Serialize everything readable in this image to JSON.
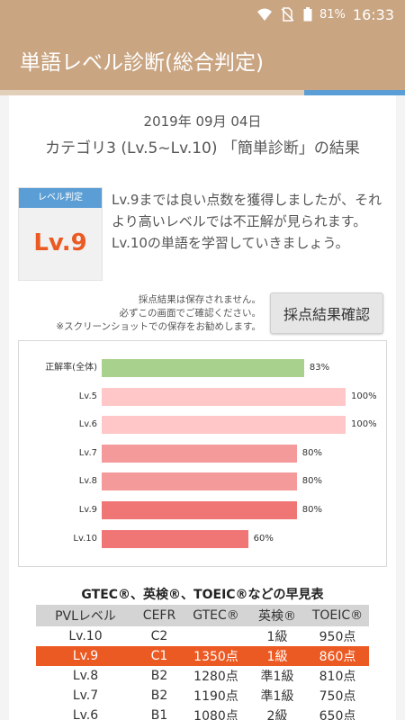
{
  "status_bar": {
    "battery": "81%",
    "time": "16:33",
    "icons": [
      "wifi-icon",
      "no-sim-icon",
      "battery-icon"
    ]
  },
  "app_bar": {
    "title": "単語レベル診断(総合判定)"
  },
  "result": {
    "date": "2019年 09月 04日",
    "subtitle": "カテゴリ3 (Lv.5~Lv.10) 「簡単診断」の結果"
  },
  "level": {
    "header": "レベル判定",
    "value": "Lv.9",
    "message": "Lv.9までは良い点数を獲得しましたが、それより高いレベルでは不正解が見られます。Lv.10の単語を学習していきましょう。"
  },
  "notice": {
    "lines": [
      "採点結果は保存されません。",
      "必ずこの画面でご確認ください。",
      "※スクリーンショットでの保存をお勧めします。"
    ]
  },
  "check_button": {
    "label": "採点結果確認"
  },
  "chart_data": {
    "type": "bar",
    "orientation": "horizontal",
    "categories": [
      "正解率(全体)",
      "Lv.5",
      "Lv.6",
      "Lv.7",
      "Lv.8",
      "Lv.9",
      "Lv.10"
    ],
    "values": [
      83,
      100,
      100,
      80,
      80,
      80,
      60
    ],
    "value_labels": [
      "83%",
      "100%",
      "100%",
      "80%",
      "80%",
      "80%",
      "60%"
    ],
    "colors": [
      "#a9d18e",
      "#ffc7c7",
      "#ffc7c7",
      "#f59a9a",
      "#f59a9a",
      "#f07575",
      "#f07575"
    ],
    "xlim": [
      0,
      100
    ],
    "unit": "%"
  },
  "conversion_table": {
    "title": "GTEC®、英検®、TOEIC®などの早見表",
    "headers": [
      "PVLレベル",
      "CEFR",
      "GTEC®",
      "英検®",
      "TOEIC®"
    ],
    "rows": [
      [
        "Lv.10",
        "C2",
        "",
        "1級",
        "950点"
      ],
      [
        "Lv.9",
        "C1",
        "1350点",
        "1級",
        "860点"
      ],
      [
        "Lv.8",
        "B2",
        "1280点",
        "準1級",
        "810点"
      ],
      [
        "Lv.7",
        "B2",
        "1190点",
        "準1級",
        "750点"
      ],
      [
        "Lv.6",
        "B1",
        "1080点",
        "2級",
        "650点"
      ]
    ],
    "highlight_row": 1,
    "highlight_color": "#ec5a24"
  }
}
